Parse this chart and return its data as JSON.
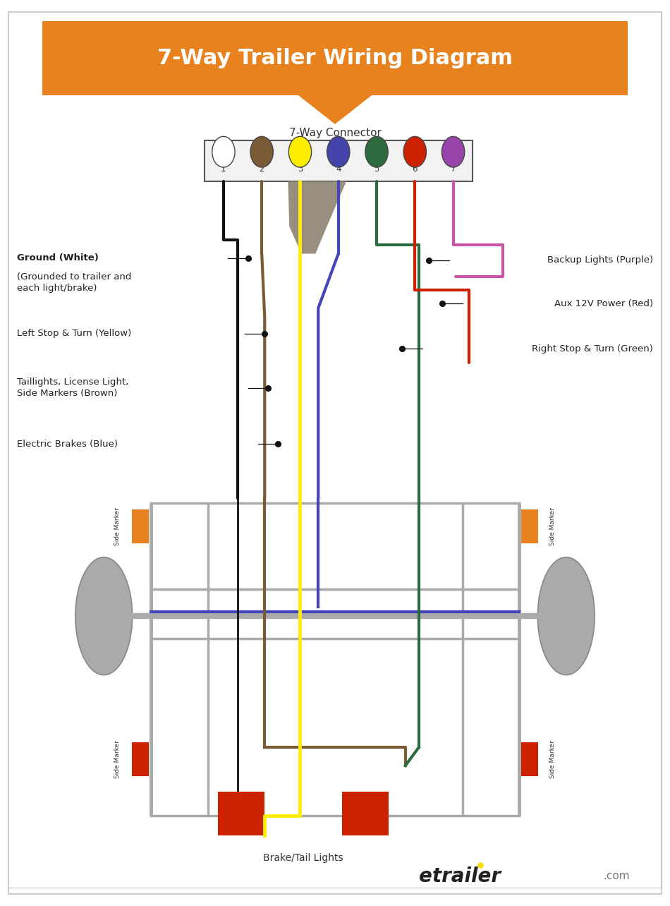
{
  "title": "7-Way Trailer Wiring Diagram",
  "title_color": "#FFFFFF",
  "title_bg_color": "#E8821E",
  "bg_color": "#FFFFFF",
  "border_color": "#CCCCCC",
  "connector_label": "7-Way Connector",
  "pin_numbers": [
    "1",
    "2",
    "3",
    "4",
    "5",
    "6",
    "7"
  ],
  "pin_colors": [
    "#FFFFFF",
    "#7B5B35",
    "#FFEE00",
    "#4444AA",
    "#2B6B3F",
    "#CC2200",
    "#9944AA"
  ],
  "pin_edge_color": "#444444",
  "wire_colors": [
    "#111111",
    "#7B5B35",
    "#FFEE00",
    "#4444BB",
    "#2B6B3F",
    "#CC2200",
    "#CC55AA"
  ],
  "harness_color": "#8B8070",
  "frame_color": "#AAAAAA",
  "wheel_color": "#AAAAAA",
  "orange_marker": "#E8821E",
  "red_brake": "#CC2200",
  "brand_color": "#222222",
  "brand_dot": "#FFDD00",
  "label_color": "#222222",
  "dot_color": "#111111"
}
